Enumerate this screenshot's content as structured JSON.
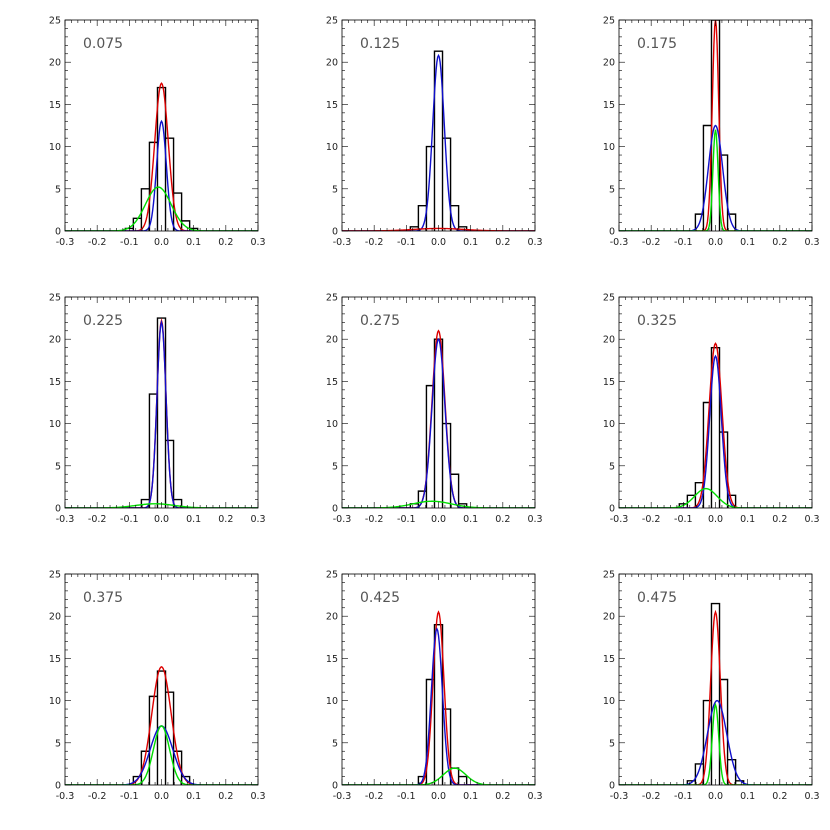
{
  "chart_data": [
    {
      "type": "line",
      "title": "0.075",
      "xlim": [
        -0.3,
        0.3
      ],
      "ylim": [
        0,
        25
      ],
      "xticks": [
        "-0.3",
        "-0.2",
        "-0.1",
        "0.0",
        "0.1",
        "0.2",
        "0.3"
      ],
      "yticks": [
        "0",
        "5",
        "10",
        "15",
        "20",
        "25"
      ],
      "histogram": {
        "bin_centers": [
          -0.1,
          -0.075,
          -0.05,
          -0.025,
          0.0,
          0.025,
          0.05,
          0.075,
          0.1
        ],
        "values": [
          0.3,
          1.5,
          5,
          10.5,
          17,
          11,
          4.5,
          1.2,
          0.3
        ]
      },
      "series": [
        {
          "name": "red",
          "color": "#dd0000",
          "peak": 17.5,
          "mu": 0.0,
          "sigma": 0.021
        },
        {
          "name": "blue",
          "color": "#1010cc",
          "peak": 13,
          "mu": 0.0,
          "sigma": 0.015
        },
        {
          "name": "green",
          "color": "#00dd00",
          "peak": 5.2,
          "mu": -0.01,
          "sigma": 0.04
        }
      ]
    },
    {
      "type": "line",
      "title": "0.125",
      "xlim": [
        -0.3,
        0.3
      ],
      "ylim": [
        0,
        25
      ],
      "xticks": [
        "-0.3",
        "-0.2",
        "-0.1",
        "0.0",
        "0.1",
        "0.2",
        "0.3"
      ],
      "yticks": [
        "0",
        "5",
        "10",
        "15",
        "20",
        "25"
      ],
      "histogram": {
        "bin_centers": [
          -0.075,
          -0.05,
          -0.025,
          0.0,
          0.025,
          0.05,
          0.075
        ],
        "values": [
          0.5,
          3,
          10,
          21.3,
          11,
          3,
          0.5
        ]
      },
      "series": [
        {
          "name": "blue",
          "color": "#1010cc",
          "peak": 20.8,
          "mu": 0.0,
          "sigma": 0.018
        },
        {
          "name": "red",
          "color": "#dd0000",
          "peak": 0.3,
          "mu": 0.0,
          "sigma": 0.08
        }
      ]
    },
    {
      "type": "line",
      "title": "0.175",
      "xlim": [
        -0.3,
        0.3
      ],
      "ylim": [
        0,
        25
      ],
      "xticks": [
        "-0.3",
        "-0.2",
        "-0.1",
        "0.0",
        "0.1",
        "0.2",
        "0.3"
      ],
      "yticks": [
        "0",
        "5",
        "10",
        "15",
        "20",
        "25"
      ],
      "histogram": {
        "bin_centers": [
          -0.05,
          -0.025,
          0.0,
          0.025,
          0.05
        ],
        "values": [
          2,
          12.5,
          25,
          9,
          2
        ]
      },
      "series": [
        {
          "name": "red",
          "color": "#dd0000",
          "peak": 25,
          "mu": 0.0,
          "sigma": 0.01
        },
        {
          "name": "blue",
          "color": "#1010cc",
          "peak": 12.5,
          "mu": 0.0,
          "sigma": 0.022
        },
        {
          "name": "green",
          "color": "#00dd00",
          "peak": 12,
          "mu": 0.0,
          "sigma": 0.008
        }
      ]
    },
    {
      "type": "line",
      "title": "0.225",
      "xlim": [
        -0.3,
        0.3
      ],
      "ylim": [
        0,
        25
      ],
      "xticks": [
        "-0.3",
        "-0.2",
        "-0.1",
        "0.0",
        "0.1",
        "0.2",
        "0.3"
      ],
      "yticks": [
        "0",
        "5",
        "10",
        "15",
        "20",
        "25"
      ],
      "histogram": {
        "bin_centers": [
          -0.05,
          -0.025,
          0.0,
          0.025,
          0.05
        ],
        "values": [
          1,
          13.5,
          22.5,
          8,
          1
        ]
      },
      "series": [
        {
          "name": "red",
          "color": "#dd0000",
          "peak": 22.2,
          "mu": 0.0,
          "sigma": 0.014
        },
        {
          "name": "blue",
          "color": "#1010cc",
          "peak": 22,
          "mu": 0.0,
          "sigma": 0.014
        },
        {
          "name": "green",
          "color": "#00dd00",
          "peak": 0.5,
          "mu": -0.02,
          "sigma": 0.06
        }
      ]
    },
    {
      "type": "line",
      "title": "0.275",
      "xlim": [
        -0.3,
        0.3
      ],
      "ylim": [
        0,
        25
      ],
      "xticks": [
        "-0.3",
        "-0.2",
        "-0.1",
        "0.0",
        "0.1",
        "0.2",
        "0.3"
      ],
      "yticks": [
        "0",
        "5",
        "10",
        "15",
        "20",
        "25"
      ],
      "histogram": {
        "bin_centers": [
          -0.075,
          -0.05,
          -0.025,
          0.0,
          0.025,
          0.05,
          0.075
        ],
        "values": [
          0.5,
          2,
          14.5,
          20,
          10,
          4,
          0.5
        ]
      },
      "series": [
        {
          "name": "red",
          "color": "#dd0000",
          "peak": 21,
          "mu": 0.0,
          "sigma": 0.02
        },
        {
          "name": "blue",
          "color": "#1010cc",
          "peak": 20,
          "mu": 0.0,
          "sigma": 0.02
        },
        {
          "name": "green",
          "color": "#00dd00",
          "peak": 0.8,
          "mu": -0.02,
          "sigma": 0.06
        }
      ]
    },
    {
      "type": "line",
      "title": "0.325",
      "xlim": [
        -0.3,
        0.3
      ],
      "ylim": [
        0,
        25
      ],
      "xticks": [
        "-0.3",
        "-0.2",
        "-0.1",
        "0.0",
        "0.1",
        "0.2",
        "0.3"
      ],
      "yticks": [
        "0",
        "5",
        "10",
        "15",
        "20",
        "25"
      ],
      "histogram": {
        "bin_centers": [
          -0.1,
          -0.075,
          -0.05,
          -0.025,
          0.0,
          0.025,
          0.05
        ],
        "values": [
          0.5,
          1.5,
          3,
          12.5,
          19,
          9,
          1.5
        ]
      },
      "series": [
        {
          "name": "red",
          "color": "#dd0000",
          "peak": 19.5,
          "mu": 0.0,
          "sigma": 0.02
        },
        {
          "name": "blue",
          "color": "#1010cc",
          "peak": 18,
          "mu": 0.0,
          "sigma": 0.018
        },
        {
          "name": "green",
          "color": "#00dd00",
          "peak": 2.3,
          "mu": -0.03,
          "sigma": 0.035
        }
      ]
    },
    {
      "type": "line",
      "title": "0.375",
      "xlim": [
        -0.3,
        0.3
      ],
      "ylim": [
        0,
        25
      ],
      "xticks": [
        "-0.3",
        "-0.2",
        "-0.1",
        "0.0",
        "0.1",
        "0.2",
        "0.3"
      ],
      "yticks": [
        "0",
        "5",
        "10",
        "15",
        "20",
        "25"
      ],
      "histogram": {
        "bin_centers": [
          -0.075,
          -0.05,
          -0.025,
          0.0,
          0.025,
          0.05,
          0.075
        ],
        "values": [
          1,
          4,
          10.5,
          13.5,
          11,
          4,
          1
        ]
      },
      "series": [
        {
          "name": "red",
          "color": "#dd0000",
          "peak": 14,
          "mu": 0.0,
          "sigma": 0.03
        },
        {
          "name": "blue",
          "color": "#1010cc",
          "peak": 7,
          "mu": 0.0,
          "sigma": 0.035
        },
        {
          "name": "green",
          "color": "#00dd00",
          "peak": 7,
          "mu": 0.0,
          "sigma": 0.025
        }
      ]
    },
    {
      "type": "line",
      "title": "0.425",
      "xlim": [
        -0.3,
        0.3
      ],
      "ylim": [
        0,
        25
      ],
      "xticks": [
        "-0.3",
        "-0.2",
        "-0.1",
        "0.0",
        "0.1",
        "0.2",
        "0.3"
      ],
      "yticks": [
        "0",
        "5",
        "10",
        "15",
        "20",
        "25"
      ],
      "histogram": {
        "bin_centers": [
          -0.05,
          -0.025,
          0.0,
          0.025,
          0.05,
          0.075
        ],
        "values": [
          1,
          12.5,
          19,
          9,
          2,
          1
        ]
      },
      "series": [
        {
          "name": "red",
          "color": "#dd0000",
          "peak": 20.5,
          "mu": 0.0,
          "sigma": 0.017
        },
        {
          "name": "blue",
          "color": "#1010cc",
          "peak": 18.5,
          "mu": -0.005,
          "sigma": 0.017
        },
        {
          "name": "green",
          "color": "#00dd00",
          "peak": 2,
          "mu": 0.05,
          "sigma": 0.035
        }
      ]
    },
    {
      "type": "line",
      "title": "0.475",
      "xlim": [
        -0.3,
        0.3
      ],
      "ylim": [
        0,
        25
      ],
      "xticks": [
        "-0.3",
        "-0.2",
        "-0.1",
        "0.0",
        "0.1",
        "0.2",
        "0.3"
      ],
      "yticks": [
        "0",
        "5",
        "10",
        "15",
        "20",
        "25"
      ],
      "histogram": {
        "bin_centers": [
          -0.075,
          -0.05,
          -0.025,
          0.0,
          0.025,
          0.05,
          0.075
        ],
        "values": [
          0.5,
          2.5,
          10,
          21.5,
          12.5,
          3,
          0.5
        ]
      },
      "series": [
        {
          "name": "red",
          "color": "#dd0000",
          "peak": 20.5,
          "mu": 0.0,
          "sigma": 0.015
        },
        {
          "name": "blue",
          "color": "#1010cc",
          "peak": 10,
          "mu": 0.005,
          "sigma": 0.03
        },
        {
          "name": "green",
          "color": "#00dd00",
          "peak": 9.5,
          "mu": 0.0,
          "sigma": 0.01
        }
      ]
    }
  ]
}
